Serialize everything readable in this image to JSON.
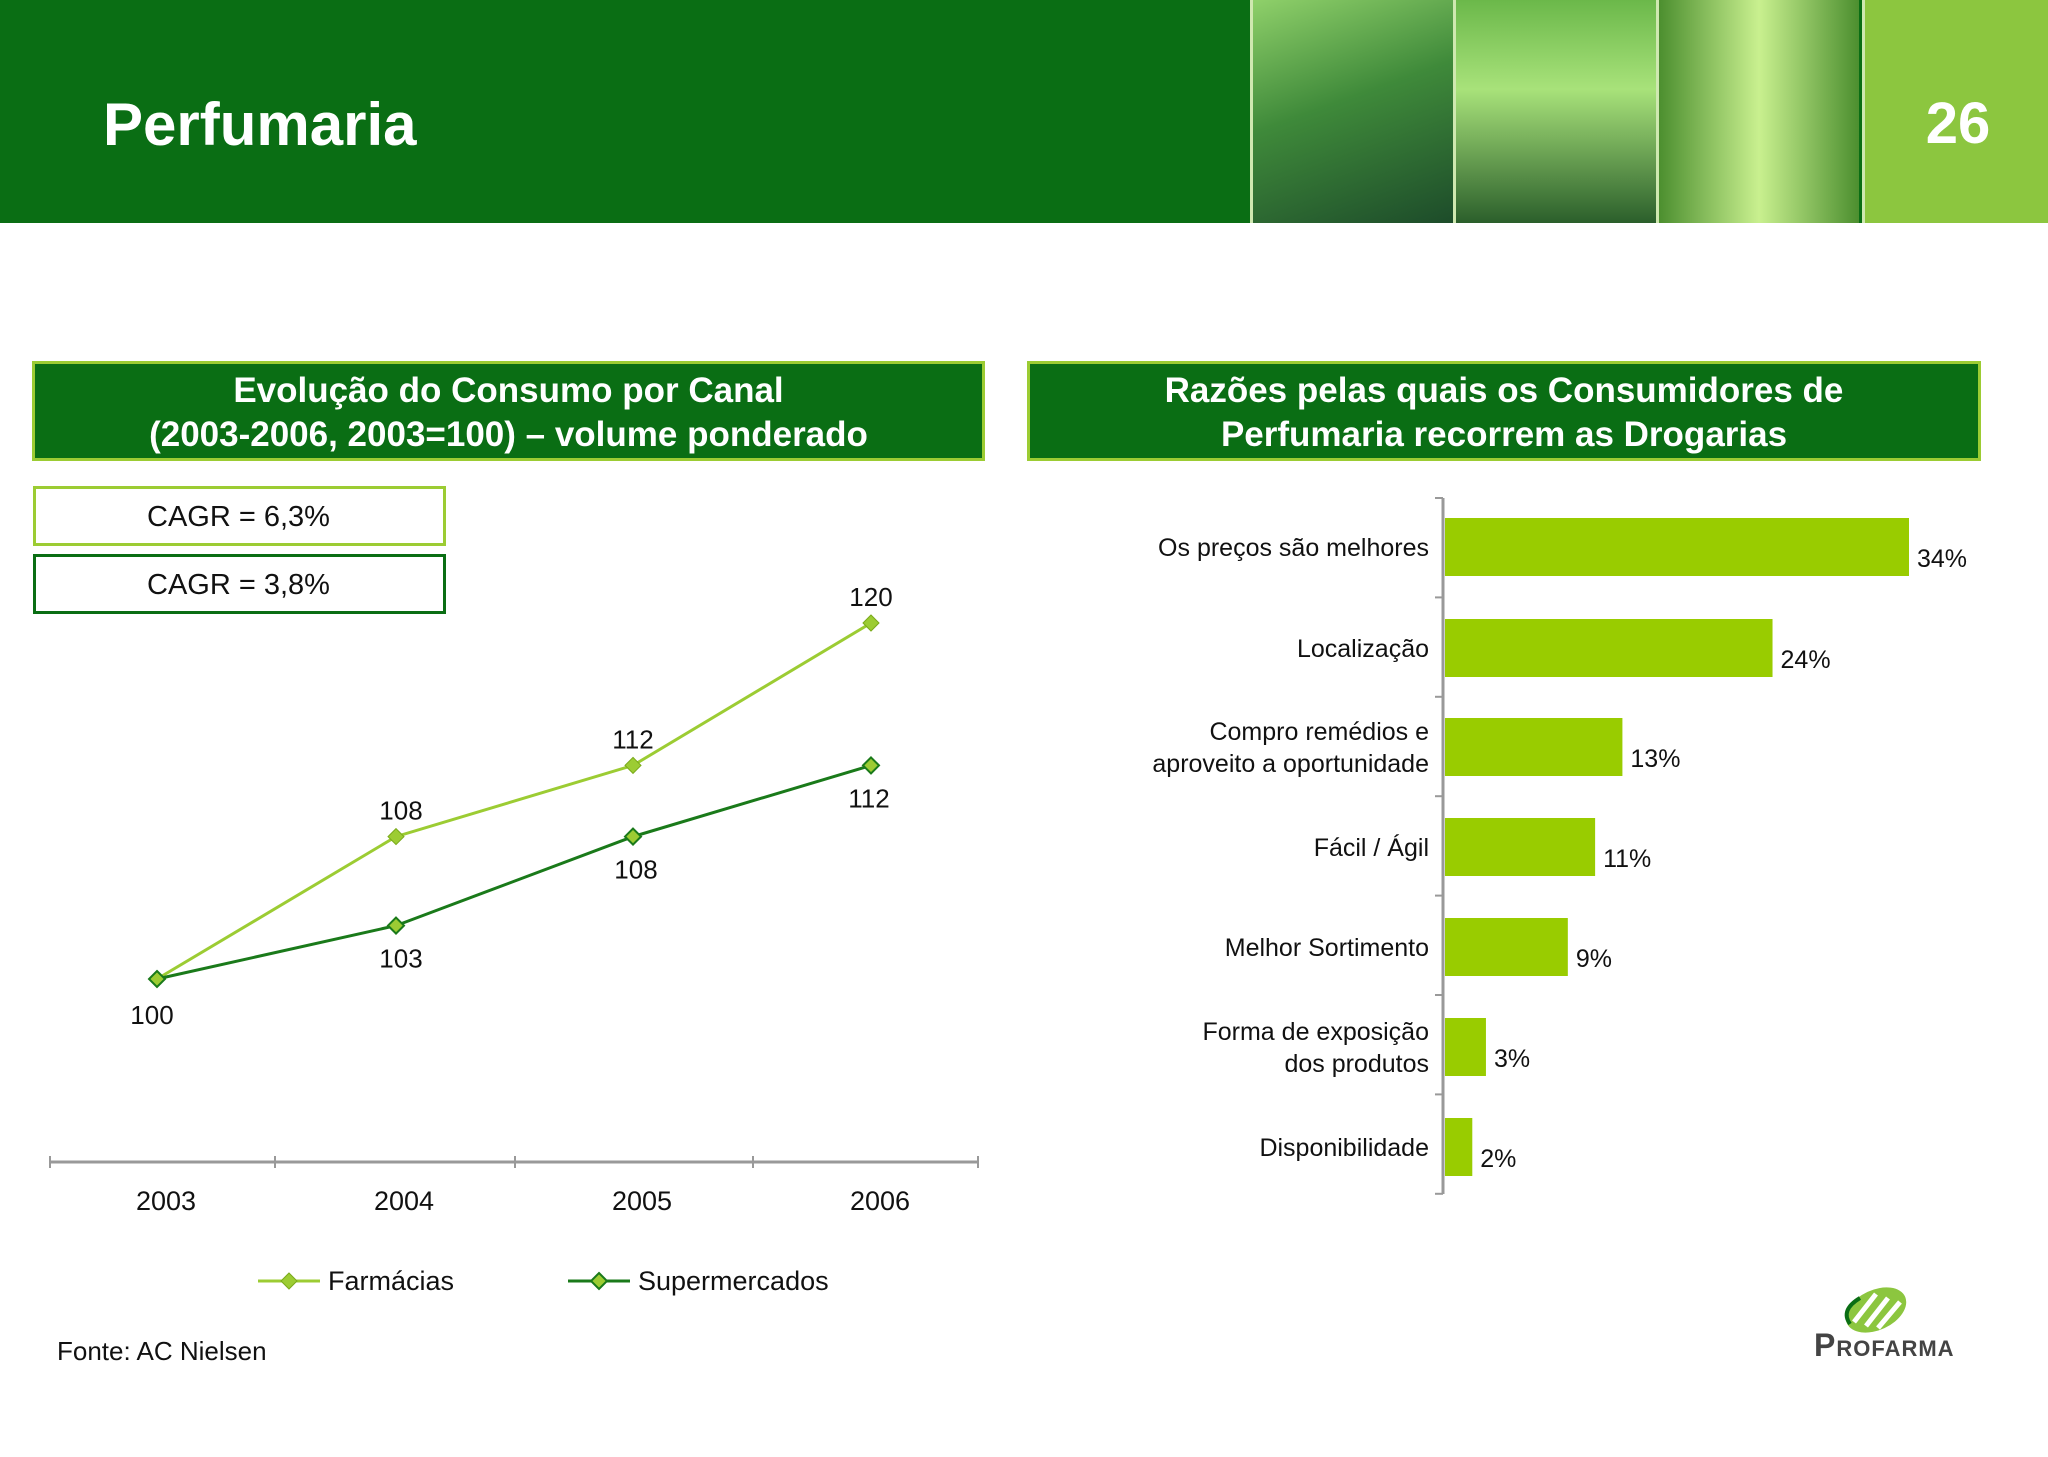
{
  "header": {
    "title": "Perfumaria",
    "page_number": "26",
    "colors": {
      "dark_green": "#0a6e14",
      "light_green": "#8cc63f"
    }
  },
  "left_panel": {
    "title_line1": "Evolução do Consumo por Canal",
    "title_line2": "(2003-2006, 2003=100) – volume ponderado",
    "cagr_farmacias": "CAGR = 6,3%",
    "cagr_supermercados": "CAGR = 3,8%"
  },
  "right_panel": {
    "title_line1": "Razões pelas quais os Consumidores de",
    "title_line2": "Perfumaria recorrem as Drogarias"
  },
  "chart_data": [
    {
      "type": "line",
      "x": [
        "2003",
        "2004",
        "2005",
        "2006"
      ],
      "ylim": [
        90,
        125
      ],
      "series": [
        {
          "name": "Farmácias",
          "values": [
            100,
            108,
            112,
            120
          ],
          "color": "#9ccc33",
          "labels": [
            "100",
            "108",
            "112",
            "120"
          ]
        },
        {
          "name": "Supermercados",
          "values": [
            100,
            103,
            108,
            112
          ],
          "color": "#1a7a1a",
          "labels": [
            "",
            "103",
            "108",
            "112"
          ]
        }
      ],
      "legend": "bottom"
    },
    {
      "type": "bar",
      "orientation": "horizontal",
      "categories": [
        [
          "Os preços são melhores"
        ],
        [
          "Localização"
        ],
        [
          "Compro remédios e",
          "aproveito a oportunidade"
        ],
        [
          "Fácil / Ágil"
        ],
        [
          "Melhor Sortimento"
        ],
        [
          "Forma de exposição",
          "dos produtos"
        ],
        [
          "Disponibilidade"
        ]
      ],
      "values": [
        34,
        24,
        13,
        11,
        9,
        3,
        2
      ],
      "value_labels": [
        "34%",
        "24%",
        "13%",
        "11%",
        "9%",
        "3%",
        "2%"
      ],
      "xlim": [
        0,
        34
      ],
      "color": "#99cc00"
    }
  ],
  "footer": {
    "source": "Fonte: AC Nielsen",
    "logo_text": "Profarma"
  }
}
